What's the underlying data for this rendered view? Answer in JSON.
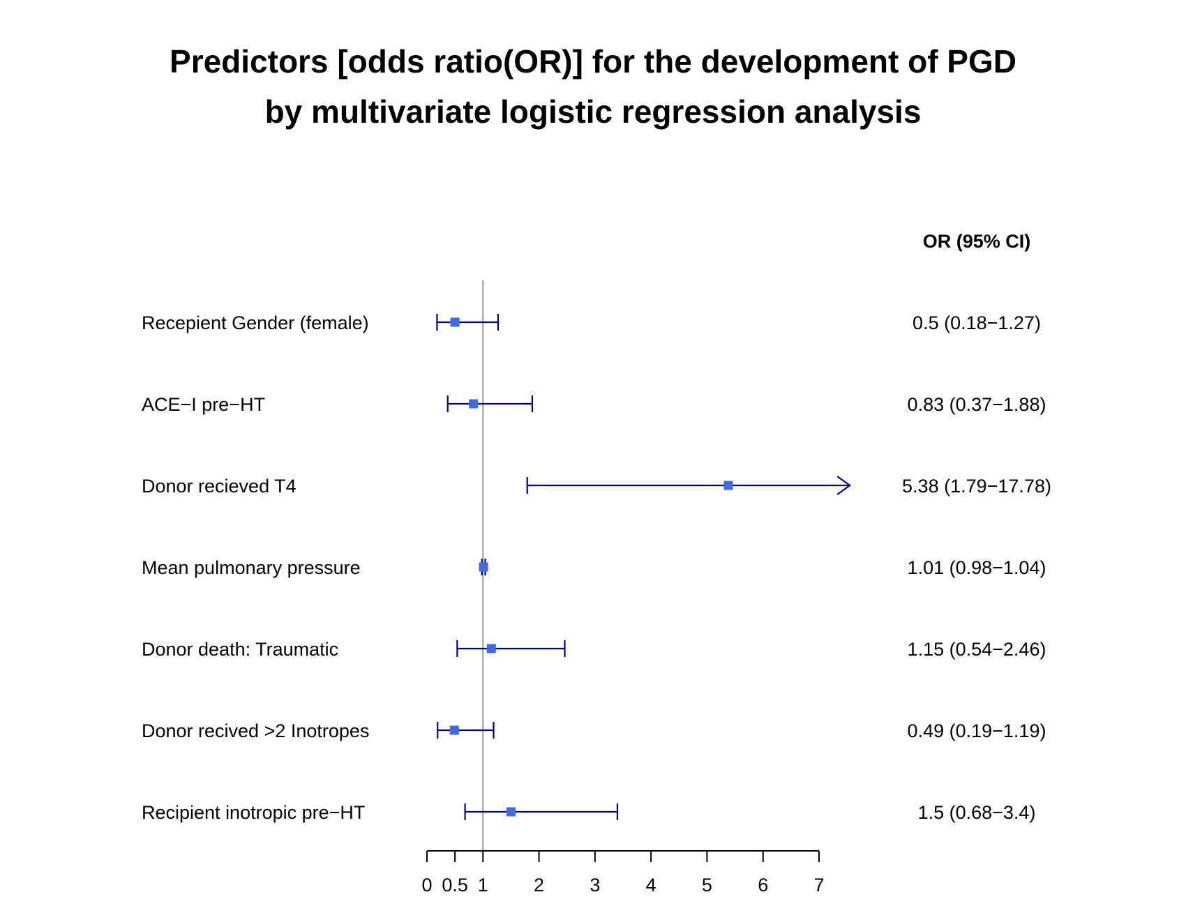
{
  "chart_data": {
    "type": "forest",
    "title": [
      "Predictors [odds ratio(OR)] for the development of PGD",
      "by multivariate logistic regression analysis"
    ],
    "or_header": "OR (95% CI)",
    "reference_line": 1,
    "xlim": [
      0,
      7
    ],
    "x_ticks": [
      0,
      0.5,
      1,
      2,
      3,
      4,
      5,
      6,
      7
    ],
    "colors": {
      "point": "#4169e1",
      "ci_line": "#00008b",
      "reference": "#999999",
      "axis": "#000000"
    },
    "rows": [
      {
        "label": "Recepient Gender (female)",
        "or": 0.5,
        "lower": 0.18,
        "upper": 1.27,
        "text": "0.5 (0.18−1.27)"
      },
      {
        "label": "ACE−I pre−HT",
        "or": 0.83,
        "lower": 0.37,
        "upper": 1.88,
        "text": "0.83 (0.37−1.88)"
      },
      {
        "label": "Donor recieved T4",
        "or": 5.38,
        "lower": 1.79,
        "upper": 17.78,
        "text": "5.38 (1.79−17.78)"
      },
      {
        "label": "Mean pulmonary pressure",
        "or": 1.01,
        "lower": 0.98,
        "upper": 1.04,
        "text": "1.01 (0.98−1.04)"
      },
      {
        "label": "Donor death: Traumatic",
        "or": 1.15,
        "lower": 0.54,
        "upper": 2.46,
        "text": "1.15 (0.54−2.46)"
      },
      {
        "label": "Donor recived >2 Inotropes",
        "or": 0.49,
        "lower": 0.19,
        "upper": 1.19,
        "text": "0.49 (0.19−1.19)"
      },
      {
        "label": "Recipient inotropic pre−HT",
        "or": 1.5,
        "lower": 0.68,
        "upper": 3.4,
        "text": "1.5 (0.68−3.4)"
      }
    ]
  }
}
